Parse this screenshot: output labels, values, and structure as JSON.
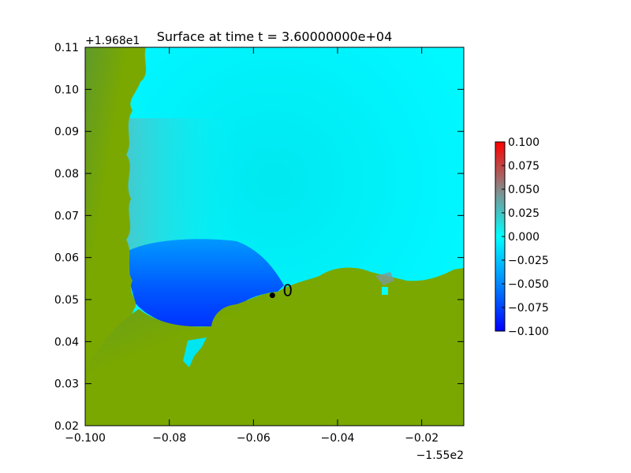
{
  "chart_data": {
    "type": "heatmap",
    "title": "Surface at time t = 3.60000000e+04",
    "xlabel": "",
    "ylabel": "",
    "x_offset_label": "−1.55e2",
    "y_offset_label": "+1.968e1",
    "xlim": [
      -0.1,
      -0.01
    ],
    "ylim": [
      0.02,
      0.11
    ],
    "x_ticks": [
      -0.1,
      -0.08,
      -0.06,
      -0.04,
      -0.02
    ],
    "x_tick_labels": [
      "−0.100",
      "−0.08",
      "−0.06",
      "−0.04",
      "−0.02"
    ],
    "y_ticks": [
      0.02,
      0.03,
      0.04,
      0.05,
      0.06,
      0.07,
      0.08,
      0.09,
      0.1,
      0.11
    ],
    "y_tick_labels": [
      "0.02",
      "0.03",
      "0.04",
      "0.05",
      "0.06",
      "0.07",
      "0.08",
      "0.09",
      "0.10",
      "0.11"
    ],
    "colorbar": {
      "min": -0.1,
      "max": 0.1,
      "ticks": [
        0.1,
        0.075,
        0.05,
        0.025,
        0.0,
        -0.025,
        -0.05,
        -0.075,
        -0.1
      ],
      "tick_labels": [
        "0.100",
        "0.075",
        "0.050",
        "0.025",
        "0.000",
        "−0.025",
        "−0.050",
        "−0.075",
        "−0.100"
      ],
      "colors": [
        "#0000ff",
        "#0088ff",
        "#00ffff",
        "#888888",
        "#ff0000"
      ]
    },
    "gauges": [
      {
        "label": "0",
        "x": -0.0555,
        "y": 0.051
      }
    ],
    "grid": false,
    "land_color": "#7aa800",
    "water_color": "#00f0ff"
  }
}
